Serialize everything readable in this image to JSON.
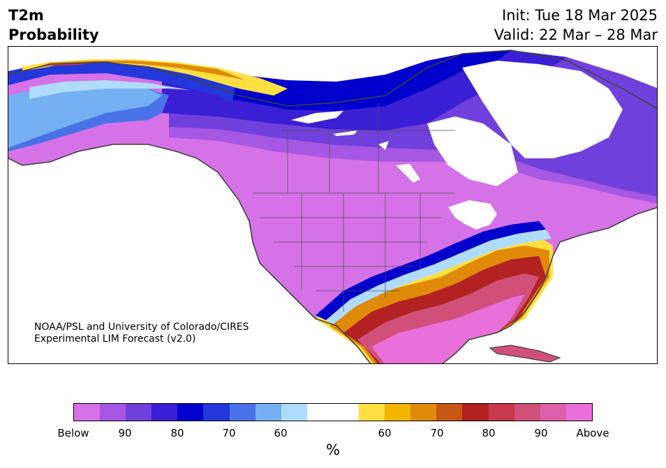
{
  "header": {
    "title_line1": "T2m",
    "title_line2": "Probability",
    "init_text": "Init: Tue 18 Mar 2025",
    "valid_text": "Valid: 22 Mar – 28 Mar"
  },
  "credit": {
    "line1": "NOAA/PSL and University of Colorado/CIRES",
    "line2": "Experimental LIM Forecast (v2.0)"
  },
  "colorbar": {
    "colors": [
      "#d672e8",
      "#a657e3",
      "#7040dc",
      "#3a1fd4",
      "#0000cc",
      "#2437da",
      "#4a72e8",
      "#74b0f2",
      "#b0dcfc",
      "#ffffff",
      "#ffffff",
      "#ffe040",
      "#f2b600",
      "#e08a0c",
      "#c85614",
      "#b22222",
      "#c8384e",
      "#d0507a",
      "#dc60a8",
      "#e870d8"
    ],
    "tick_labels": [
      "Below",
      "90",
      "80",
      "70",
      "60",
      "60",
      "70",
      "80",
      "90",
      "Above"
    ],
    "unit": "%"
  },
  "map_colors": {
    "below_90": "#d672e8",
    "below_85": "#a657e3",
    "below_80": "#7040dc",
    "below_75": "#3a1fd4",
    "below_70": "#0000cc",
    "below_65": "#2437da",
    "below_60": "#4a72e8",
    "below_55": "#74b0f2",
    "below_50": "#b0dcfc",
    "above_55": "#ffe040",
    "above_60": "#f2b600",
    "above_65": "#e08a0c",
    "above_70": "#c85614",
    "above_75": "#b22222",
    "above_80": "#c8384e",
    "above_85": "#d0507a",
    "above_90": "#dc60a8",
    "above_max": "#e870d8",
    "coastline": "#404040"
  }
}
